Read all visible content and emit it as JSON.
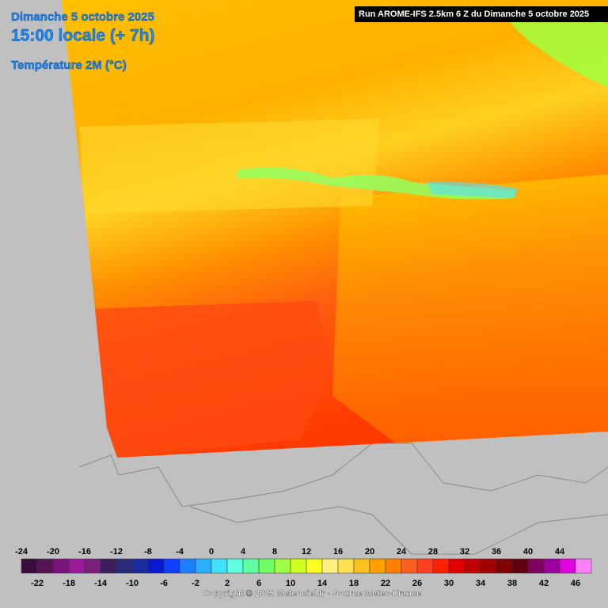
{
  "header": {
    "date": "Dimanche 5 octobre 2025",
    "time": "15:00 locale (+ 7h)",
    "parameter": "Température 2M (°C)"
  },
  "run_label": "Run AROME-IFS 2.5km 6 Z du Dimanche 5 octobre 2025",
  "legend": {
    "top_labels": [
      -24,
      -20,
      -16,
      -12,
      -8,
      -4,
      0,
      4,
      8,
      12,
      16,
      20,
      24,
      28,
      32,
      36,
      40,
      44
    ],
    "bottom_labels": [
      -22,
      -18,
      -14,
      -10,
      -6,
      -2,
      2,
      6,
      10,
      14,
      18,
      22,
      26,
      30,
      34,
      38,
      42,
      46
    ],
    "colors": [
      "#3c0c3c",
      "#561456",
      "#7c127c",
      "#9a1a9a",
      "#7a1f7a",
      "#3a1f5a",
      "#2a2a7a",
      "#1a2aa0",
      "#0a1ad0",
      "#1040ff",
      "#1a80ff",
      "#28b0ff",
      "#40e0ff",
      "#60ffe0",
      "#60ffa0",
      "#70ff60",
      "#a0ff40",
      "#d0ff20",
      "#ffff20",
      "#fff080",
      "#ffe050",
      "#ffc020",
      "#ffa000",
      "#ff8000",
      "#ff6020",
      "#ff4020",
      "#ff2000",
      "#e00000",
      "#c00000",
      "#a00000",
      "#800000",
      "#600010",
      "#800060",
      "#a000a0",
      "#e000e0",
      "#ff80ff"
    ]
  },
  "copyright": "Copyright © 2025 Meteociel.fr - Source Meteo-France"
}
